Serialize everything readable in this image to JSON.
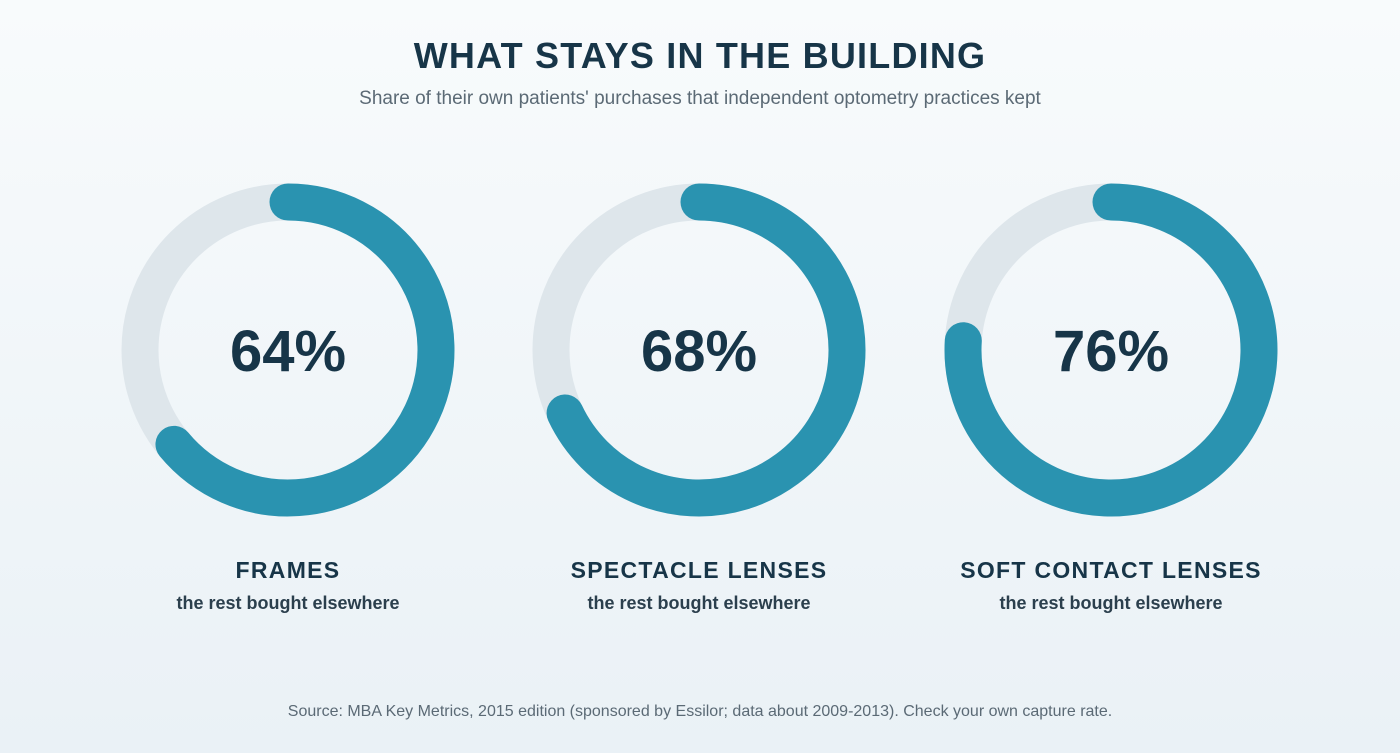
{
  "header": {
    "title": "WHAT STAYS IN THE BUILDING",
    "subtitle": "Share of their own patients' purchases that independent optometry practices kept"
  },
  "chart_data": {
    "type": "pie",
    "style": "donut",
    "unit": "%",
    "max": 100,
    "items": [
      {
        "category": "FRAMES",
        "value": 64,
        "label": "64%",
        "caption": "the rest bought elsewhere"
      },
      {
        "category": "SPECTACLE LENSES",
        "value": 68,
        "label": "68%",
        "caption": "the rest bought elsewhere"
      },
      {
        "category": "SOFT CONTACT LENSES",
        "value": 76,
        "label": "76%",
        "caption": "the rest bought elsewhere"
      }
    ],
    "colors": {
      "filled": "#2a93b0",
      "track": "#dee6eb",
      "text": "#173548"
    }
  },
  "footer": {
    "source": "Source: MBA Key Metrics, 2015 edition (sponsored by Essilor; data about 2009-2013). Check your own capture rate."
  }
}
